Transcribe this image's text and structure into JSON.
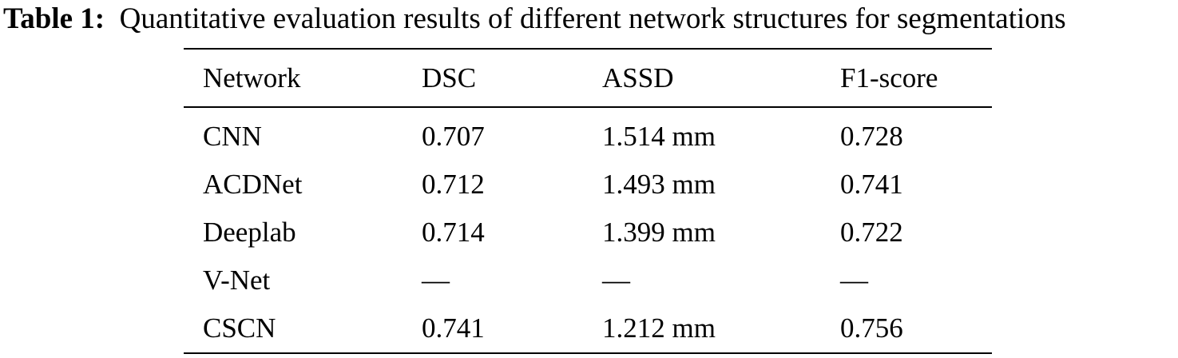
{
  "caption": {
    "label": "Table 1:",
    "text": "Quantitative evaluation results of different network structures for segmentations"
  },
  "table": {
    "headers": [
      "Network",
      "DSC",
      "ASSD",
      "F1-score"
    ],
    "rows": [
      [
        "CNN",
        "0.707",
        "1.514 mm",
        "0.728"
      ],
      [
        "ACDNet",
        "0.712",
        "1.493 mm",
        "0.741"
      ],
      [
        "Deeplab",
        "0.714",
        "1.399 mm",
        "0.722"
      ],
      [
        "V-Net",
        "—",
        "—",
        "—"
      ],
      [
        "CSCN",
        "0.741",
        "1.212 mm",
        "0.756"
      ]
    ]
  }
}
